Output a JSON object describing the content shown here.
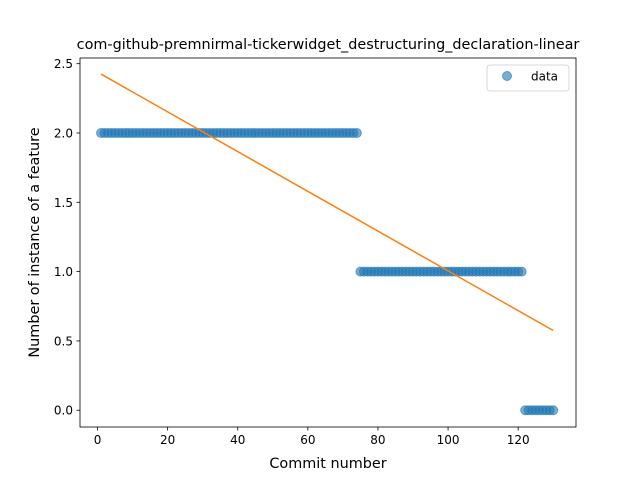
{
  "chart_data": {
    "type": "scatter",
    "title": "com-github-premnirmal-tickerwidget_destructuring_declaration-linear",
    "xlabel": "Commit number",
    "ylabel": "Number of instance of a feature",
    "xlim": [
      -5,
      136.5
    ],
    "ylim": [
      -0.121,
      2.541
    ],
    "xticks": [
      0,
      20,
      40,
      60,
      80,
      100,
      120
    ],
    "xtick_labels": [
      "0",
      "20",
      "40",
      "60",
      "80",
      "100",
      "120"
    ],
    "yticks": [
      0.0,
      0.5,
      1.0,
      1.5,
      2.0,
      2.5
    ],
    "ytick_labels": [
      "0.0",
      "0.5",
      "1.0",
      "1.5",
      "2.0",
      "2.5"
    ],
    "grid": false,
    "legend_position": "top-right",
    "series": [
      {
        "name": "data",
        "kind": "scatter",
        "color": "#1f77b4",
        "alpha": 0.6,
        "segments": [
          {
            "x_from": 1,
            "x_to": 74,
            "y": 2
          },
          {
            "x_from": 75,
            "x_to": 121,
            "y": 1
          },
          {
            "x_from": 122,
            "x_to": 130,
            "y": 0
          }
        ]
      },
      {
        "kind": "line",
        "color": "#ff7f0e",
        "x": [
          1,
          130
        ],
        "y": [
          2.425,
          0.575
        ]
      }
    ]
  }
}
